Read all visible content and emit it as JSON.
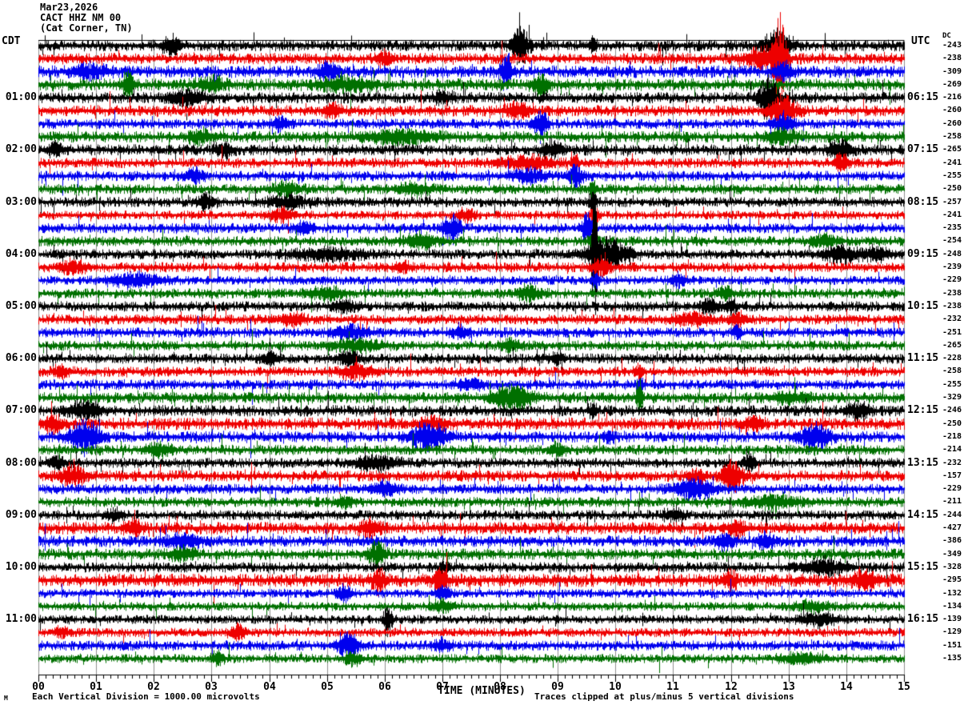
{
  "header": {
    "date": "Mar23,2026",
    "station": "CACT HHZ NM 00",
    "location": "(Cat Corner, TN)"
  },
  "left_axis": {
    "timezone": "CDT"
  },
  "right_axis": {
    "timezone": "UTC",
    "dc_label": "DC"
  },
  "x_axis": {
    "title": "TIME (MINUTES)",
    "tick_labels": [
      "00",
      "01",
      "02",
      "03",
      "04",
      "05",
      "06",
      "07",
      "08",
      "09",
      "10",
      "11",
      "12",
      "13",
      "14",
      "15"
    ]
  },
  "footer": {
    "corner_mark": "M",
    "scale_note": "Each Vertical Division = 1000.00 microvolts",
    "clip_note": "Traces clipped at plus/minus 5 vertical divisions"
  },
  "colors": {
    "trace_cycle": [
      "#000000",
      "#ee0000",
      "#0000ee",
      "#007000"
    ],
    "grid": "#909090",
    "axis": "#000000",
    "background": "#ffffff"
  },
  "chart_data": {
    "type": "helicorder-seismogram",
    "minutes_per_line": 15,
    "lines": 48,
    "clip_divisions": 5,
    "microvolts_per_division": "1000.00",
    "traces": [
      {
        "left": "",
        "right": "",
        "dc": "-243",
        "amp": 5.0,
        "events": [
          [
            2.3,
            0.1,
            12
          ],
          [
            8.35,
            0.1,
            26
          ],
          [
            12.8,
            0.15,
            18
          ],
          [
            9.6,
            0.05,
            10
          ]
        ]
      },
      {
        "left": "",
        "right": "",
        "dc": "-238",
        "amp": 5.0,
        "events": [
          [
            6.0,
            0.1,
            8
          ],
          [
            12.85,
            0.07,
            52
          ],
          [
            12.6,
            0.2,
            16
          ]
        ]
      },
      {
        "left": "",
        "right": "",
        "dc": "-309",
        "amp": 5.5,
        "events": [
          [
            5.0,
            0.12,
            10
          ],
          [
            8.1,
            0.07,
            22
          ],
          [
            12.9,
            0.1,
            12
          ],
          [
            0.9,
            0.2,
            8
          ]
        ]
      },
      {
        "left": "",
        "right": "",
        "dc": "-269",
        "amp": 5.5,
        "events": [
          [
            1.55,
            0.07,
            16
          ],
          [
            5.3,
            0.3,
            8
          ],
          [
            8.7,
            0.1,
            12
          ],
          [
            3.0,
            0.15,
            8
          ]
        ]
      },
      {
        "left": "01:00",
        "right": "06:15",
        "dc": "-216",
        "amp": 5.0,
        "events": [
          [
            2.6,
            0.2,
            10
          ],
          [
            12.65,
            0.12,
            25
          ],
          [
            7.0,
            0.1,
            8
          ]
        ]
      },
      {
        "left": "",
        "right": "",
        "dc": "-260",
        "amp": 5.0,
        "events": [
          [
            8.3,
            0.15,
            10
          ],
          [
            12.9,
            0.15,
            20
          ],
          [
            5.1,
            0.1,
            8
          ]
        ]
      },
      {
        "left": "",
        "right": "",
        "dc": "-260",
        "amp": 4.5,
        "events": [
          [
            4.2,
            0.1,
            8
          ],
          [
            8.7,
            0.08,
            18
          ],
          [
            12.9,
            0.12,
            10
          ]
        ]
      },
      {
        "left": "",
        "right": "",
        "dc": "-258",
        "amp": 5.0,
        "events": [
          [
            6.3,
            0.4,
            8
          ],
          [
            2.8,
            0.15,
            8
          ],
          [
            12.9,
            0.2,
            8
          ]
        ]
      },
      {
        "left": "02:00",
        "right": "07:15",
        "dc": "-265",
        "amp": 5.0,
        "events": [
          [
            0.3,
            0.1,
            8
          ],
          [
            8.9,
            0.1,
            10
          ],
          [
            13.9,
            0.12,
            14
          ],
          [
            3.2,
            0.1,
            8
          ]
        ]
      },
      {
        "left": "",
        "right": "",
        "dc": "-241",
        "amp": 4.5,
        "events": [
          [
            8.5,
            0.3,
            8
          ],
          [
            13.9,
            0.08,
            12
          ],
          [
            9.3,
            0.05,
            8
          ]
        ]
      },
      {
        "left": "",
        "right": "",
        "dc": "-255",
        "amp": 4.5,
        "events": [
          [
            8.5,
            0.2,
            8
          ],
          [
            9.3,
            0.08,
            16
          ],
          [
            2.7,
            0.1,
            8
          ]
        ]
      },
      {
        "left": "",
        "right": "",
        "dc": "-250",
        "amp": 4.5,
        "events": [
          [
            4.3,
            0.15,
            10
          ],
          [
            6.5,
            0.2,
            7
          ],
          [
            9.6,
            0.04,
            14
          ]
        ]
      },
      {
        "left": "03:00",
        "right": "08:15",
        "dc": "-257",
        "amp": 4.5,
        "events": [
          [
            2.9,
            0.1,
            10
          ],
          [
            4.3,
            0.2,
            8
          ],
          [
            9.6,
            0.05,
            12
          ]
        ]
      },
      {
        "left": "",
        "right": "",
        "dc": "-241",
        "amp": 4.0,
        "events": [
          [
            4.2,
            0.15,
            8
          ],
          [
            7.4,
            0.1,
            8
          ],
          [
            9.65,
            0.05,
            10
          ]
        ]
      },
      {
        "left": "",
        "right": "",
        "dc": "-235",
        "amp": 4.5,
        "events": [
          [
            7.15,
            0.1,
            20
          ],
          [
            9.5,
            0.06,
            20
          ],
          [
            4.6,
            0.1,
            8
          ]
        ]
      },
      {
        "left": "",
        "right": "",
        "dc": "-254",
        "amp": 4.5,
        "events": [
          [
            6.6,
            0.2,
            8
          ],
          [
            9.6,
            0.05,
            10
          ],
          [
            13.6,
            0.15,
            7
          ]
        ]
      },
      {
        "left": "04:00",
        "right": "09:15",
        "dc": "-248",
        "amp": 4.5,
        "events": [
          [
            9.63,
            0.035,
            75
          ],
          [
            9.85,
            0.25,
            20
          ],
          [
            5.0,
            0.4,
            6
          ],
          [
            13.9,
            0.2,
            10
          ],
          [
            14.5,
            0.15,
            8
          ]
        ]
      },
      {
        "left": "",
        "right": "",
        "dc": "-239",
        "amp": 4.5,
        "events": [
          [
            9.75,
            0.1,
            12
          ],
          [
            0.6,
            0.15,
            8
          ],
          [
            6.3,
            0.1,
            7
          ]
        ]
      },
      {
        "left": "",
        "right": "",
        "dc": "-229",
        "amp": 4.0,
        "events": [
          [
            1.7,
            0.3,
            8
          ],
          [
            9.65,
            0.04,
            10
          ],
          [
            11.1,
            0.1,
            7
          ]
        ]
      },
      {
        "left": "",
        "right": "",
        "dc": "-238",
        "amp": 4.5,
        "events": [
          [
            8.5,
            0.15,
            8
          ],
          [
            5.0,
            0.2,
            7
          ],
          [
            11.9,
            0.1,
            7
          ]
        ]
      },
      {
        "left": "05:00",
        "right": "10:15",
        "dc": "-238",
        "amp": 4.5,
        "events": [
          [
            5.3,
            0.15,
            7
          ],
          [
            11.6,
            0.1,
            8
          ],
          [
            12.0,
            0.08,
            8
          ]
        ]
      },
      {
        "left": "",
        "right": "",
        "dc": "-232",
        "amp": 4.5,
        "events": [
          [
            11.3,
            0.2,
            8
          ],
          [
            12.1,
            0.08,
            10
          ],
          [
            4.4,
            0.15,
            7
          ]
        ]
      },
      {
        "left": "",
        "right": "",
        "dc": "-251",
        "amp": 4.5,
        "events": [
          [
            5.4,
            0.2,
            8
          ],
          [
            7.3,
            0.1,
            7
          ],
          [
            12.1,
            0.05,
            8
          ]
        ]
      },
      {
        "left": "",
        "right": "",
        "dc": "-265",
        "amp": 4.5,
        "events": [
          [
            5.5,
            0.3,
            7
          ],
          [
            8.2,
            0.1,
            7
          ]
        ]
      },
      {
        "left": "06:00",
        "right": "11:15",
        "dc": "-228",
        "amp": 4.5,
        "events": [
          [
            4.0,
            0.1,
            8
          ],
          [
            5.4,
            0.15,
            8
          ],
          [
            9.0,
            0.08,
            7
          ]
        ]
      },
      {
        "left": "",
        "right": "",
        "dc": "-258",
        "amp": 4.5,
        "events": [
          [
            5.5,
            0.2,
            8
          ],
          [
            10.4,
            0.05,
            8
          ],
          [
            0.4,
            0.1,
            7
          ]
        ]
      },
      {
        "left": "",
        "right": "",
        "dc": "-255",
        "amp": 4.5,
        "events": [
          [
            10.42,
            0.04,
            12
          ],
          [
            7.5,
            0.15,
            7
          ]
        ]
      },
      {
        "left": "",
        "right": "",
        "dc": "-329",
        "amp": 5.0,
        "events": [
          [
            8.2,
            0.22,
            16
          ],
          [
            10.42,
            0.035,
            26
          ],
          [
            13.0,
            0.2,
            7
          ]
        ]
      },
      {
        "left": "07:00",
        "right": "12:15",
        "dc": "-246",
        "amp": 5.0,
        "events": [
          [
            0.8,
            0.2,
            10
          ],
          [
            14.2,
            0.12,
            12
          ],
          [
            9.6,
            0.05,
            8
          ]
        ]
      },
      {
        "left": "",
        "right": "",
        "dc": "-250",
        "amp": 5.5,
        "events": [
          [
            0.25,
            0.1,
            10
          ],
          [
            6.8,
            0.15,
            8
          ],
          [
            12.4,
            0.1,
            8
          ]
        ]
      },
      {
        "left": "",
        "right": "",
        "dc": "-218",
        "amp": 5.0,
        "events": [
          [
            0.8,
            0.17,
            22
          ],
          [
            6.75,
            0.22,
            16
          ],
          [
            13.45,
            0.18,
            16
          ],
          [
            9.9,
            0.05,
            8
          ]
        ]
      },
      {
        "left": "",
        "right": "",
        "dc": "-214",
        "amp": 4.5,
        "events": [
          [
            2.1,
            0.15,
            7
          ],
          [
            9.0,
            0.1,
            7
          ]
        ]
      },
      {
        "left": "08:00",
        "right": "13:15",
        "dc": "-232",
        "amp": 4.5,
        "events": [
          [
            5.85,
            0.25,
            9
          ],
          [
            12.3,
            0.08,
            10
          ],
          [
            0.3,
            0.1,
            8
          ]
        ]
      },
      {
        "left": "",
        "right": "",
        "dc": "-157",
        "amp": 5.0,
        "events": [
          [
            0.6,
            0.15,
            14
          ],
          [
            11.4,
            0.1,
            9
          ],
          [
            12.02,
            0.12,
            20
          ]
        ]
      },
      {
        "left": "",
        "right": "",
        "dc": "-229",
        "amp": 4.5,
        "events": [
          [
            11.35,
            0.22,
            13
          ],
          [
            6.0,
            0.15,
            7
          ]
        ]
      },
      {
        "left": "",
        "right": "",
        "dc": "-211",
        "amp": 4.5,
        "events": [
          [
            12.7,
            0.3,
            8
          ],
          [
            5.3,
            0.1,
            7
          ]
        ]
      },
      {
        "left": "09:00",
        "right": "14:15",
        "dc": "-244",
        "amp": 4.5,
        "events": [
          [
            1.3,
            0.1,
            7
          ],
          [
            11.0,
            0.1,
            7
          ]
        ]
      },
      {
        "left": "",
        "right": "",
        "dc": "-427",
        "amp": 5.5,
        "events": [
          [
            1.65,
            0.1,
            11
          ],
          [
            5.75,
            0.12,
            10
          ],
          [
            12.1,
            0.1,
            8
          ]
        ]
      },
      {
        "left": "",
        "right": "",
        "dc": "-386",
        "amp": 5.0,
        "events": [
          [
            2.5,
            0.2,
            8
          ],
          [
            11.9,
            0.1,
            10
          ],
          [
            12.6,
            0.1,
            8
          ]
        ]
      },
      {
        "left": "",
        "right": "",
        "dc": "-349",
        "amp": 5.0,
        "events": [
          [
            5.85,
            0.1,
            16
          ],
          [
            2.5,
            0.15,
            7
          ]
        ]
      },
      {
        "left": "10:00",
        "right": "15:15",
        "dc": "-328",
        "amp": 4.5,
        "events": [
          [
            7.03,
            0.05,
            10
          ],
          [
            13.6,
            0.25,
            10
          ]
        ]
      },
      {
        "left": "",
        "right": "",
        "dc": "-295",
        "amp": 6.0,
        "events": [
          [
            5.9,
            0.08,
            14
          ],
          [
            6.95,
            0.08,
            16
          ],
          [
            12.0,
            0.07,
            10
          ],
          [
            14.3,
            0.15,
            10
          ]
        ]
      },
      {
        "left": "",
        "right": "",
        "dc": "-132",
        "amp": 4.0,
        "events": [
          [
            5.3,
            0.08,
            12
          ],
          [
            7.0,
            0.08,
            9
          ]
        ]
      },
      {
        "left": "",
        "right": "",
        "dc": "-134",
        "amp": 4.0,
        "events": [
          [
            7.0,
            0.12,
            7
          ],
          [
            13.4,
            0.2,
            6
          ]
        ]
      },
      {
        "left": "11:00",
        "right": "16:15",
        "dc": "-139",
        "amp": 4.0,
        "events": [
          [
            6.05,
            0.05,
            18
          ],
          [
            13.5,
            0.2,
            8
          ]
        ]
      },
      {
        "left": "",
        "right": "",
        "dc": "-129",
        "amp": 4.0,
        "events": [
          [
            3.45,
            0.08,
            10
          ],
          [
            0.4,
            0.1,
            6
          ]
        ]
      },
      {
        "left": "",
        "right": "",
        "dc": "-151",
        "amp": 4.5,
        "events": [
          [
            5.35,
            0.12,
            16
          ],
          [
            7.0,
            0.1,
            8
          ]
        ]
      },
      {
        "left": "",
        "right": "",
        "dc": "-135",
        "amp": 4.0,
        "events": [
          [
            5.45,
            0.1,
            10
          ],
          [
            3.1,
            0.08,
            8
          ],
          [
            13.2,
            0.25,
            6
          ]
        ]
      }
    ]
  }
}
